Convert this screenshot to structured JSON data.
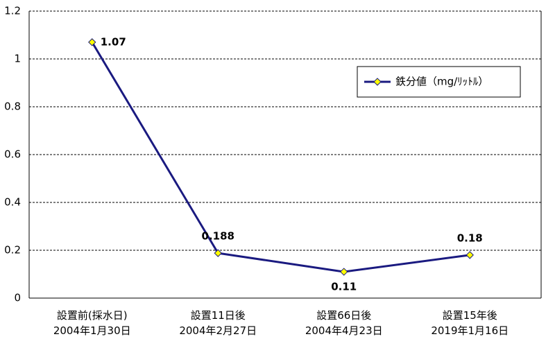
{
  "chart_data": {
    "type": "line",
    "categories": [
      "設置前(採水日)\n2004年1月30日",
      "設置11日後\n2004年2月27日",
      "設置66日後\n2004年4月23日",
      "設置15年後\n2019年1月16日"
    ],
    "series": [
      {
        "name": "鉄分値（mg/ﾘｯﾄﾙ）",
        "color": "#1a1a80",
        "marker_color": "#ffff00",
        "values": [
          1.07,
          0.188,
          0.11,
          0.18
        ]
      }
    ],
    "ylim": [
      0,
      1.2
    ],
    "yticks": [
      0,
      0.2,
      0.4,
      0.6,
      0.8,
      1,
      1.2
    ],
    "grid": true,
    "data_labels": true,
    "legend": "upper right"
  }
}
